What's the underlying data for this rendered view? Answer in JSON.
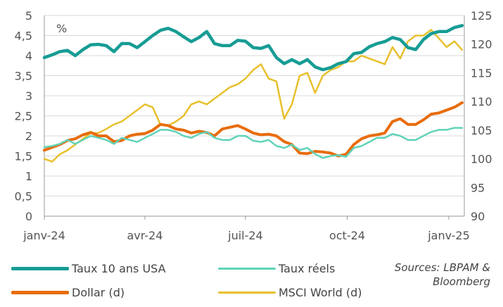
{
  "chart_data": {
    "type": "line",
    "title": "",
    "y_unit_label": "%",
    "x_tick_labels": [
      "janv-24",
      "avr-24",
      "juil-24",
      "oct-24",
      "janv-25"
    ],
    "x_range": [
      "2024-01-01",
      "2025-01-15"
    ],
    "y_left": {
      "min": 0,
      "max": 5,
      "ticks": [
        "0",
        "0,5",
        "1",
        "1,5",
        "2",
        "2,5",
        "3",
        "3,5",
        "4",
        "4,5",
        "5"
      ]
    },
    "y_right": {
      "min": 90,
      "max": 125,
      "ticks": [
        "90",
        "95",
        "100",
        "105",
        "110",
        "115",
        "120",
        "125"
      ]
    },
    "grid": "horizontal",
    "legend_position": "bottom",
    "series": [
      {
        "name": "Taux 10 ans USA",
        "axis": "left",
        "color": "#169c94",
        "width": 4.5,
        "points": [
          [
            "2024-01-01",
            3.95
          ],
          [
            "2024-01-08",
            4.02
          ],
          [
            "2024-01-15",
            4.1
          ],
          [
            "2024-01-22",
            4.13
          ],
          [
            "2024-01-29",
            4.0
          ],
          [
            "2024-02-05",
            4.15
          ],
          [
            "2024-02-12",
            4.27
          ],
          [
            "2024-02-19",
            4.28
          ],
          [
            "2024-02-26",
            4.25
          ],
          [
            "2024-03-04",
            4.1
          ],
          [
            "2024-03-11",
            4.3
          ],
          [
            "2024-03-18",
            4.3
          ],
          [
            "2024-03-25",
            4.2
          ],
          [
            "2024-04-01",
            4.35
          ],
          [
            "2024-04-08",
            4.5
          ],
          [
            "2024-04-15",
            4.63
          ],
          [
            "2024-04-22",
            4.68
          ],
          [
            "2024-04-29",
            4.6
          ],
          [
            "2024-05-06",
            4.47
          ],
          [
            "2024-05-13",
            4.35
          ],
          [
            "2024-05-20",
            4.45
          ],
          [
            "2024-05-27",
            4.6
          ],
          [
            "2024-06-03",
            4.3
          ],
          [
            "2024-06-10",
            4.25
          ],
          [
            "2024-06-17",
            4.25
          ],
          [
            "2024-06-24",
            4.38
          ],
          [
            "2024-07-01",
            4.36
          ],
          [
            "2024-07-08",
            4.2
          ],
          [
            "2024-07-15",
            4.18
          ],
          [
            "2024-07-22",
            4.25
          ],
          [
            "2024-07-29",
            3.95
          ],
          [
            "2024-08-05",
            3.8
          ],
          [
            "2024-08-12",
            3.9
          ],
          [
            "2024-08-19",
            3.8
          ],
          [
            "2024-08-26",
            3.9
          ],
          [
            "2024-09-02",
            3.72
          ],
          [
            "2024-09-09",
            3.65
          ],
          [
            "2024-09-16",
            3.7
          ],
          [
            "2024-09-23",
            3.8
          ],
          [
            "2024-09-30",
            3.85
          ],
          [
            "2024-10-07",
            4.05
          ],
          [
            "2024-10-14",
            4.08
          ],
          [
            "2024-10-21",
            4.22
          ],
          [
            "2024-10-28",
            4.3
          ],
          [
            "2024-11-04",
            4.35
          ],
          [
            "2024-11-11",
            4.45
          ],
          [
            "2024-11-18",
            4.4
          ],
          [
            "2024-11-25",
            4.2
          ],
          [
            "2024-12-02",
            4.15
          ],
          [
            "2024-12-09",
            4.4
          ],
          [
            "2024-12-16",
            4.55
          ],
          [
            "2024-12-23",
            4.6
          ],
          [
            "2024-12-30",
            4.6
          ],
          [
            "2025-01-06",
            4.7
          ],
          [
            "2025-01-13",
            4.75
          ]
        ]
      },
      {
        "name": "Taux réels",
        "axis": "left",
        "color": "#5fd3b8",
        "width": 2.5,
        "points": [
          [
            "2024-01-01",
            1.72
          ],
          [
            "2024-01-08",
            1.75
          ],
          [
            "2024-01-15",
            1.8
          ],
          [
            "2024-01-22",
            1.9
          ],
          [
            "2024-01-29",
            1.8
          ],
          [
            "2024-02-05",
            1.9
          ],
          [
            "2024-02-12",
            2.0
          ],
          [
            "2024-02-19",
            1.95
          ],
          [
            "2024-02-26",
            1.9
          ],
          [
            "2024-03-04",
            1.8
          ],
          [
            "2024-03-11",
            1.95
          ],
          [
            "2024-03-18",
            1.9
          ],
          [
            "2024-03-25",
            1.85
          ],
          [
            "2024-04-01",
            1.95
          ],
          [
            "2024-04-08",
            2.05
          ],
          [
            "2024-04-15",
            2.15
          ],
          [
            "2024-04-22",
            2.15
          ],
          [
            "2024-04-29",
            2.1
          ],
          [
            "2024-05-06",
            2.0
          ],
          [
            "2024-05-13",
            1.95
          ],
          [
            "2024-05-20",
            2.05
          ],
          [
            "2024-05-27",
            2.1
          ],
          [
            "2024-06-03",
            1.95
          ],
          [
            "2024-06-10",
            1.9
          ],
          [
            "2024-06-17",
            1.9
          ],
          [
            "2024-06-24",
            2.0
          ],
          [
            "2024-07-01",
            2.0
          ],
          [
            "2024-07-08",
            1.88
          ],
          [
            "2024-07-15",
            1.85
          ],
          [
            "2024-07-22",
            1.9
          ],
          [
            "2024-07-29",
            1.75
          ],
          [
            "2024-08-05",
            1.7
          ],
          [
            "2024-08-12",
            1.78
          ],
          [
            "2024-08-19",
            1.65
          ],
          [
            "2024-08-26",
            1.7
          ],
          [
            "2024-09-02",
            1.55
          ],
          [
            "2024-09-09",
            1.45
          ],
          [
            "2024-09-16",
            1.5
          ],
          [
            "2024-09-23",
            1.52
          ],
          [
            "2024-09-30",
            1.48
          ],
          [
            "2024-10-07",
            1.7
          ],
          [
            "2024-10-14",
            1.75
          ],
          [
            "2024-10-21",
            1.85
          ],
          [
            "2024-10-28",
            1.95
          ],
          [
            "2024-11-04",
            1.95
          ],
          [
            "2024-11-11",
            2.05
          ],
          [
            "2024-11-18",
            2.0
          ],
          [
            "2024-11-25",
            1.9
          ],
          [
            "2024-12-02",
            1.9
          ],
          [
            "2024-12-09",
            2.0
          ],
          [
            "2024-12-16",
            2.1
          ],
          [
            "2024-12-23",
            2.15
          ],
          [
            "2024-12-30",
            2.15
          ],
          [
            "2025-01-06",
            2.2
          ],
          [
            "2025-01-13",
            2.2
          ]
        ]
      },
      {
        "name": "Dollar (d)",
        "axis": "right",
        "color": "#e86c0c",
        "width": 4,
        "points": [
          [
            "2024-01-01",
            101.5
          ],
          [
            "2024-01-08",
            102.0
          ],
          [
            "2024-01-15",
            102.5
          ],
          [
            "2024-01-22",
            103.2
          ],
          [
            "2024-01-29",
            103.5
          ],
          [
            "2024-02-05",
            104.2
          ],
          [
            "2024-02-12",
            104.6
          ],
          [
            "2024-02-19",
            104.0
          ],
          [
            "2024-02-26",
            104.0
          ],
          [
            "2024-03-04",
            103.0
          ],
          [
            "2024-03-11",
            103.2
          ],
          [
            "2024-03-18",
            104.0
          ],
          [
            "2024-03-25",
            104.3
          ],
          [
            "2024-04-01",
            104.4
          ],
          [
            "2024-04-08",
            105.0
          ],
          [
            "2024-04-15",
            106.0
          ],
          [
            "2024-04-22",
            105.8
          ],
          [
            "2024-04-29",
            105.2
          ],
          [
            "2024-05-06",
            105.0
          ],
          [
            "2024-05-13",
            104.5
          ],
          [
            "2024-05-20",
            104.8
          ],
          [
            "2024-05-27",
            104.6
          ],
          [
            "2024-06-03",
            104.0
          ],
          [
            "2024-06-10",
            105.2
          ],
          [
            "2024-06-17",
            105.5
          ],
          [
            "2024-06-24",
            105.8
          ],
          [
            "2024-07-01",
            105.2
          ],
          [
            "2024-07-08",
            104.5
          ],
          [
            "2024-07-15",
            104.2
          ],
          [
            "2024-07-22",
            104.3
          ],
          [
            "2024-07-29",
            104.0
          ],
          [
            "2024-08-05",
            103.0
          ],
          [
            "2024-08-12",
            102.5
          ],
          [
            "2024-08-19",
            101.0
          ],
          [
            "2024-08-26",
            100.9
          ],
          [
            "2024-09-02",
            101.3
          ],
          [
            "2024-09-09",
            101.2
          ],
          [
            "2024-09-16",
            101.0
          ],
          [
            "2024-09-23",
            100.5
          ],
          [
            "2024-09-30",
            100.8
          ],
          [
            "2024-10-07",
            102.5
          ],
          [
            "2024-10-14",
            103.5
          ],
          [
            "2024-10-21",
            104.0
          ],
          [
            "2024-10-28",
            104.2
          ],
          [
            "2024-11-04",
            104.5
          ],
          [
            "2024-11-11",
            106.5
          ],
          [
            "2024-11-18",
            107.0
          ],
          [
            "2024-11-25",
            106.0
          ],
          [
            "2024-12-02",
            106.0
          ],
          [
            "2024-12-09",
            106.8
          ],
          [
            "2024-12-16",
            107.8
          ],
          [
            "2024-12-23",
            108.0
          ],
          [
            "2024-12-30",
            108.5
          ],
          [
            "2025-01-06",
            109.0
          ],
          [
            "2025-01-13",
            109.8
          ]
        ]
      },
      {
        "name": "MSCI World (d)",
        "axis": "right",
        "color": "#e8c02c",
        "width": 2.5,
        "points": [
          [
            "2024-01-01",
            100.0
          ],
          [
            "2024-01-08",
            99.5
          ],
          [
            "2024-01-15",
            100.8
          ],
          [
            "2024-01-22",
            101.5
          ],
          [
            "2024-01-29",
            102.5
          ],
          [
            "2024-02-05",
            103.5
          ],
          [
            "2024-02-12",
            104.5
          ],
          [
            "2024-02-19",
            104.5
          ],
          [
            "2024-02-26",
            105.2
          ],
          [
            "2024-03-04",
            106.0
          ],
          [
            "2024-03-11",
            106.5
          ],
          [
            "2024-03-18",
            107.5
          ],
          [
            "2024-03-25",
            108.5
          ],
          [
            "2024-04-01",
            109.5
          ],
          [
            "2024-04-08",
            109.0
          ],
          [
            "2024-04-15",
            106.0
          ],
          [
            "2024-04-22",
            105.8
          ],
          [
            "2024-04-29",
            106.5
          ],
          [
            "2024-05-06",
            107.5
          ],
          [
            "2024-05-13",
            109.5
          ],
          [
            "2024-05-20",
            110.0
          ],
          [
            "2024-05-27",
            109.5
          ],
          [
            "2024-06-03",
            110.5
          ],
          [
            "2024-06-10",
            111.5
          ],
          [
            "2024-06-17",
            112.5
          ],
          [
            "2024-06-24",
            113.0
          ],
          [
            "2024-07-01",
            114.0
          ],
          [
            "2024-07-08",
            115.5
          ],
          [
            "2024-07-15",
            116.5
          ],
          [
            "2024-07-22",
            114.0
          ],
          [
            "2024-07-29",
            113.5
          ],
          [
            "2024-08-05",
            107.0
          ],
          [
            "2024-08-12",
            109.5
          ],
          [
            "2024-08-19",
            114.5
          ],
          [
            "2024-08-26",
            115.0
          ],
          [
            "2024-09-02",
            111.5
          ],
          [
            "2024-09-09",
            114.5
          ],
          [
            "2024-09-16",
            115.5
          ],
          [
            "2024-09-23",
            116.0
          ],
          [
            "2024-09-30",
            117.0
          ],
          [
            "2024-10-07",
            117.0
          ],
          [
            "2024-10-14",
            118.0
          ],
          [
            "2024-10-21",
            117.5
          ],
          [
            "2024-10-28",
            117.0
          ],
          [
            "2024-11-04",
            116.5
          ],
          [
            "2024-11-11",
            119.5
          ],
          [
            "2024-11-18",
            117.5
          ],
          [
            "2024-11-25",
            120.5
          ],
          [
            "2024-12-02",
            121.5
          ],
          [
            "2024-12-09",
            121.5
          ],
          [
            "2024-12-16",
            122.5
          ],
          [
            "2024-12-23",
            121.0
          ],
          [
            "2024-12-30",
            119.5
          ],
          [
            "2025-01-06",
            120.5
          ],
          [
            "2025-01-13",
            119.0
          ]
        ]
      }
    ]
  },
  "legend": {
    "items": [
      {
        "label": "Taux 10 ans USA",
        "color": "#169c94"
      },
      {
        "label": "Taux réels",
        "color": "#5fd3b8"
      },
      {
        "label": "Dollar (d)",
        "color": "#e86c0c"
      },
      {
        "label": "MSCI World (d)",
        "color": "#e8c02c"
      }
    ]
  },
  "source": {
    "line1": "Sources: LBPAM &",
    "line2": "Bloomberg"
  }
}
